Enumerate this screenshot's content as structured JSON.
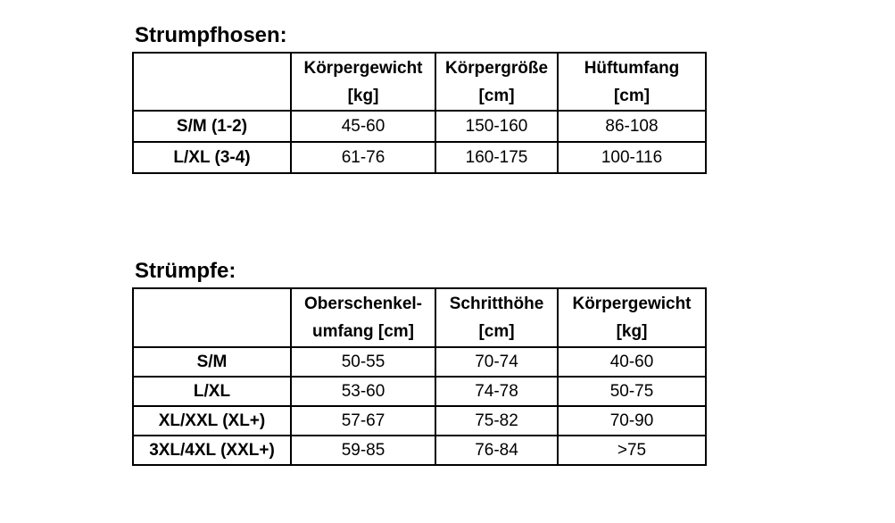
{
  "document": {
    "background_color": "#ffffff",
    "text_color": "#000000",
    "border_color": "#000000"
  },
  "tables": [
    {
      "title": "Strumpfhosen:",
      "columns": [
        {
          "line1": "",
          "line2": ""
        },
        {
          "line1": "Körpergewicht",
          "line2": "[kg]"
        },
        {
          "line1": "Körpergröße",
          "line2": "[cm]"
        },
        {
          "line1": "Hüftumfang",
          "line2": "[cm]"
        }
      ],
      "rows": [
        {
          "label": "S/M (1-2)",
          "values": [
            "45-60",
            "150-160",
            "86-108"
          ]
        },
        {
          "label": "L/XL (3-4)",
          "values": [
            "61-76",
            "160-175",
            "100-116"
          ]
        }
      ]
    },
    {
      "title": "Strümpfe:",
      "columns": [
        {
          "line1": "",
          "line2": ""
        },
        {
          "line1": "Oberschenkel-",
          "line2": "umfang [cm]"
        },
        {
          "line1": "Schritthöhe",
          "line2": "[cm]"
        },
        {
          "line1": "Körpergewicht",
          "line2": "[kg]"
        }
      ],
      "rows": [
        {
          "label": "S/M",
          "values": [
            "50-55",
            "70-74",
            "40-60"
          ]
        },
        {
          "label": "L/XL",
          "values": [
            "53-60",
            "74-78",
            "50-75"
          ]
        },
        {
          "label": "XL/XXL (XL+)",
          "values": [
            "57-67",
            "75-82",
            "70-90"
          ]
        },
        {
          "label": "3XL/4XL (XXL+)",
          "values": [
            "59-85",
            "76-84",
            ">75"
          ]
        }
      ]
    }
  ]
}
